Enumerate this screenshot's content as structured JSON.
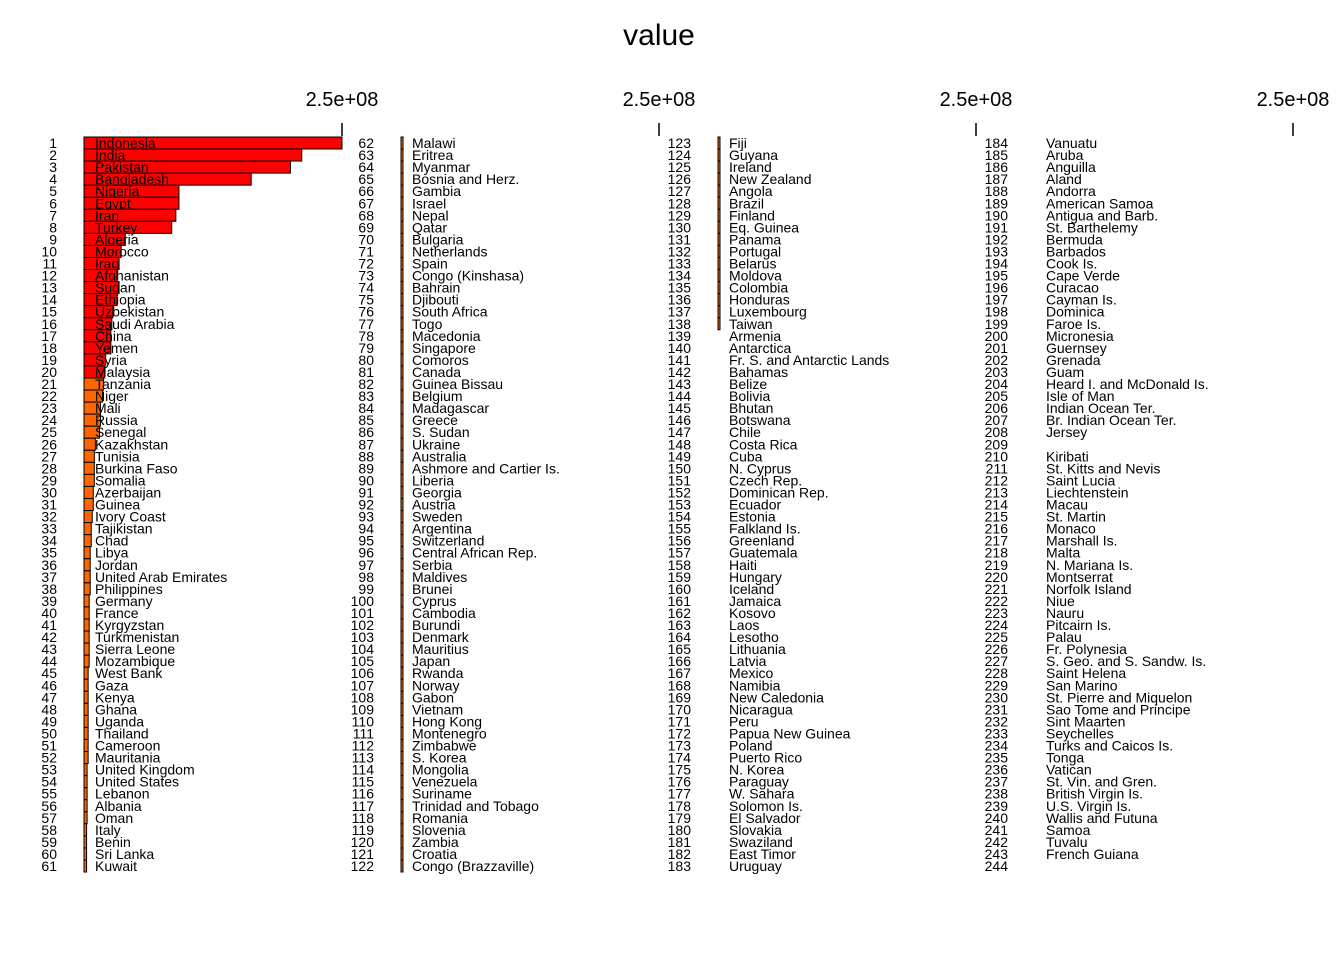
{
  "chart_data": {
    "type": "bar",
    "orientation": "horizontal",
    "title": "value",
    "axis_tick_label": "2.5e+08",
    "axis_tick_value": 250000000,
    "xlim": [
      0,
      250000000
    ],
    "colors": {
      "high": "#ff0000",
      "mid": "#ff6600",
      "low": "#ff9966",
      "bar_border": "#000000",
      "text": "#000000"
    },
    "panels": [
      {
        "ranks": [
          1,
          2,
          3,
          4,
          5,
          6,
          7,
          8,
          9,
          10,
          11,
          12,
          13,
          14,
          15,
          16,
          17,
          18,
          19,
          20,
          21,
          22,
          23,
          24,
          25,
          26,
          27,
          28,
          29,
          30,
          31,
          32,
          33,
          34,
          35,
          36,
          37,
          38,
          39,
          40,
          41,
          42,
          43,
          44,
          45,
          46,
          47,
          48,
          49,
          50,
          51,
          52,
          53,
          54,
          55,
          56,
          57,
          58,
          59,
          60,
          61
        ],
        "countries": [
          "Indonesia",
          "India",
          "Pakistan",
          "Bangladesh",
          "Nigeria",
          "Egypt",
          "Iran",
          "Turkey",
          "Algeria",
          "Morocco",
          "Iraq",
          "Afghanistan",
          "Sudan",
          "Ethiopia",
          "Uzbekistan",
          "Saudi Arabia",
          "China",
          "Yemen",
          "Syria",
          "Malaysia",
          "Tanzania",
          "Niger",
          "Mali",
          "Russia",
          "Senegal",
          "Kazakhstan",
          "Tunisia",
          "Burkina Faso",
          "Somalia",
          "Azerbaijan",
          "Guinea",
          "Ivory Coast",
          "Tajikistan",
          "Chad",
          "Libya",
          "Jordan",
          "United Arab Emirates",
          "Philippines",
          "Germany",
          "France",
          "Kyrgyzstan",
          "Turkmenistan",
          "Sierra Leone",
          "Mozambique",
          "West Bank",
          "Gaza",
          "Kenya",
          "Ghana",
          "Uganda",
          "Thailand",
          "Cameroon",
          "Mauritania",
          "United Kingdom",
          "United States",
          "Lebanon",
          "Albania",
          "Oman",
          "Italy",
          "Benin",
          "Sri Lanka",
          "Kuwait"
        ],
        "values": [
          250000000,
          211000000,
          200000000,
          162000000,
          92000000,
          92000000,
          89000000,
          85000000,
          40000000,
          36000000,
          34000000,
          32000000,
          34000000,
          32000000,
          28000000,
          27000000,
          26000000,
          26000000,
          21000000,
          20000000,
          19000000,
          18000000,
          16000000,
          16000000,
          15000000,
          11000000,
          10000000,
          10000000,
          10000000,
          9000000,
          9000000,
          8000000,
          7000000,
          7000000,
          6000000,
          6000000,
          6000000,
          6000000,
          5000000,
          5000000,
          5000000,
          5000000,
          5000000,
          5000000,
          4000000,
          4000000,
          4000000,
          4000000,
          4000000,
          4000000,
          4000000,
          4000000,
          3000000,
          3000000,
          3000000,
          3000000,
          3000000,
          2500000,
          2500000,
          2500000,
          2500000
        ]
      },
      {
        "ranks": [
          62,
          63,
          64,
          65,
          66,
          67,
          68,
          69,
          70,
          71,
          72,
          73,
          74,
          75,
          76,
          77,
          78,
          79,
          80,
          81,
          82,
          83,
          84,
          85,
          86,
          87,
          88,
          89,
          90,
          91,
          92,
          93,
          94,
          95,
          96,
          97,
          98,
          99,
          100,
          101,
          102,
          103,
          104,
          105,
          106,
          107,
          108,
          109,
          110,
          111,
          112,
          113,
          114,
          115,
          116,
          117,
          118,
          119,
          120,
          121,
          122
        ],
        "countries": [
          "Malawi",
          "Eritrea",
          "Myanmar",
          "Bosnia and Herz.",
          "Gambia",
          "Israel",
          "Nepal",
          "Qatar",
          "Bulgaria",
          "Netherlands",
          "Spain",
          "Congo (Kinshasa)",
          "Bahrain",
          "Djibouti",
          "South Africa",
          "Togo",
          "Macedonia",
          "Singapore",
          "Comoros",
          "Canada",
          "Guinea Bissau",
          "Belgium",
          "Madagascar",
          "Greece",
          "S. Sudan",
          "Ukraine",
          "Australia",
          "Ashmore and Cartier Is.",
          "Liberia",
          "Georgia",
          "Austria",
          "Sweden",
          "Argentina",
          "Switzerland",
          "Central African Rep.",
          "Serbia",
          "Maldives",
          "Brunei",
          "Cyprus",
          "Cambodia",
          "Burundi",
          "Denmark",
          "Mauritius",
          "Japan",
          "Rwanda",
          "Norway",
          "Gabon",
          "Vietnam",
          "Hong Kong",
          "Montenegro",
          "Zimbabwe",
          "S. Korea",
          "Mongolia",
          "Venezuela",
          "Suriname",
          "Trinidad and Tobago",
          "Romania",
          "Slovenia",
          "Zambia",
          "Croatia",
          "Congo (Brazzaville)"
        ],
        "values": [
          2000000,
          1900000,
          1900000,
          1800000,
          1800000,
          1700000,
          1700000,
          1600000,
          1600000,
          1500000,
          1500000,
          1500000,
          1400000,
          1400000,
          1300000,
          1300000,
          1200000,
          1200000,
          1200000,
          1100000,
          1100000,
          1000000,
          1000000,
          1000000,
          1000000,
          1000000,
          900000,
          900000,
          900000,
          900000,
          800000,
          800000,
          800000,
          800000,
          700000,
          700000,
          700000,
          600000,
          600000,
          600000,
          600000,
          600000,
          600000,
          500000,
          500000,
          500000,
          500000,
          500000,
          500000,
          500000,
          400000,
          400000,
          400000,
          400000,
          400000,
          400000,
          400000,
          300000,
          300000,
          300000,
          300000
        ]
      },
      {
        "ranks": [
          123,
          124,
          125,
          126,
          127,
          128,
          129,
          130,
          131,
          132,
          133,
          134,
          135,
          136,
          137,
          138,
          139,
          140,
          141,
          142,
          143,
          144,
          145,
          146,
          147,
          148,
          149,
          150,
          151,
          152,
          153,
          154,
          155,
          156,
          157,
          158,
          159,
          160,
          161,
          162,
          163,
          164,
          165,
          166,
          167,
          168,
          169,
          170,
          171,
          172,
          173,
          174,
          175,
          176,
          177,
          178,
          179,
          180,
          181,
          182,
          183
        ],
        "countries": [
          "Fiji",
          "Guyana",
          "Ireland",
          "New Zealand",
          "Angola",
          "Brazil",
          "Finland",
          "Eq. Guinea",
          "Panama",
          "Portugal",
          "Belarus",
          "Moldova",
          "Colombia",
          "Honduras",
          "Luxembourg",
          "Taiwan",
          "Armenia",
          "Antarctica",
          "Fr. S. and Antarctic Lands",
          "Bahamas",
          "Belize",
          "Bolivia",
          "Bhutan",
          "Botswana",
          "Chile",
          "Costa Rica",
          "Cuba",
          "N. Cyprus",
          "Czech Rep.",
          "Dominican Rep.",
          "Ecuador",
          "Estonia",
          "Falkland Is.",
          "Greenland",
          "Guatemala",
          "Haiti",
          "Hungary",
          "Iceland",
          "Jamaica",
          "Kosovo",
          "Laos",
          "Lesotho",
          "Lithuania",
          "Latvia",
          "Mexico",
          "Namibia",
          "New Caledonia",
          "Nicaragua",
          "Peru",
          "Papua New Guinea",
          "Poland",
          "Puerto Rico",
          "N. Korea",
          "Paraguay",
          "W. Sahara",
          "Solomon Is.",
          "El Salvador",
          "Slovakia",
          "Swaziland",
          "East Timor",
          "Uruguay"
        ],
        "values": [
          200000,
          200000,
          200000,
          200000,
          200000,
          200000,
          200000,
          200000,
          200000,
          200000,
          200000,
          200000,
          200000,
          200000,
          200000,
          200000,
          0,
          0,
          0,
          0,
          0,
          0,
          0,
          0,
          0,
          0,
          0,
          0,
          0,
          0,
          0,
          0,
          0,
          0,
          0,
          0,
          0,
          0,
          0,
          0,
          0,
          0,
          0,
          0,
          0,
          0,
          0,
          0,
          0,
          0,
          0,
          0,
          0,
          0,
          0,
          0,
          0,
          0,
          0,
          0,
          0
        ]
      },
      {
        "ranks": [
          184,
          185,
          186,
          187,
          188,
          189,
          190,
          191,
          192,
          193,
          194,
          195,
          196,
          197,
          198,
          199,
          200,
          201,
          202,
          203,
          204,
          205,
          206,
          207,
          208,
          209,
          210,
          211,
          212,
          213,
          214,
          215,
          216,
          217,
          218,
          219,
          220,
          221,
          222,
          223,
          224,
          225,
          226,
          227,
          228,
          229,
          230,
          231,
          232,
          233,
          234,
          235,
          236,
          237,
          238,
          239,
          240,
          241,
          242,
          243,
          244
        ],
        "countries": [
          "Vanuatu",
          "Aruba",
          "Anguilla",
          "Aland",
          "Andorra",
          "American Samoa",
          "Antigua and Barb.",
          "St. Barthelemy",
          "Bermuda",
          "Barbados",
          "Cook Is.",
          "Cape Verde",
          "Curacao",
          "Cayman Is.",
          "Dominica",
          "Faroe Is.",
          "Micronesia",
          "Guernsey",
          "Grenada",
          "Guam",
          "Heard I. and McDonald Is.",
          "Isle of Man",
          "Indian Ocean Ter.",
          "Br. Indian Ocean Ter.",
          "Jersey",
          "",
          "Kiribati",
          "St. Kitts and Nevis",
          "Saint Lucia",
          "Liechtenstein",
          "Macau",
          "St. Martin",
          "Monaco",
          "Marshall Is.",
          "Malta",
          "N. Mariana Is.",
          "Montserrat",
          "Norfolk Island",
          "Niue",
          "Nauru",
          "Pitcairn Is.",
          "Palau",
          "Fr. Polynesia",
          "S. Geo. and S. Sandw. Is.",
          "Saint Helena",
          "San Marino",
          "St. Pierre and Miquelon",
          "Sao Tome and Principe",
          "Sint Maarten",
          "Seychelles",
          "Turks and Caicos Is.",
          "Tonga",
          "Vatican",
          "St. Vin. and Gren.",
          "British Virgin Is.",
          "U.S. Virgin Is.",
          "Wallis and Futuna",
          "Samoa",
          "Tuvalu",
          "French Guiana",
          ""
        ],
        "values": [
          0,
          0,
          0,
          0,
          0,
          0,
          0,
          0,
          0,
          0,
          0,
          0,
          0,
          0,
          0,
          0,
          0,
          0,
          0,
          0,
          0,
          0,
          0,
          0,
          0,
          0,
          0,
          0,
          0,
          0,
          0,
          0,
          0,
          0,
          0,
          0,
          0,
          0,
          0,
          0,
          0,
          0,
          0,
          0,
          0,
          0,
          0,
          0,
          0,
          0,
          0,
          0,
          0,
          0,
          0,
          0,
          0,
          0,
          0,
          0,
          0
        ]
      }
    ]
  }
}
